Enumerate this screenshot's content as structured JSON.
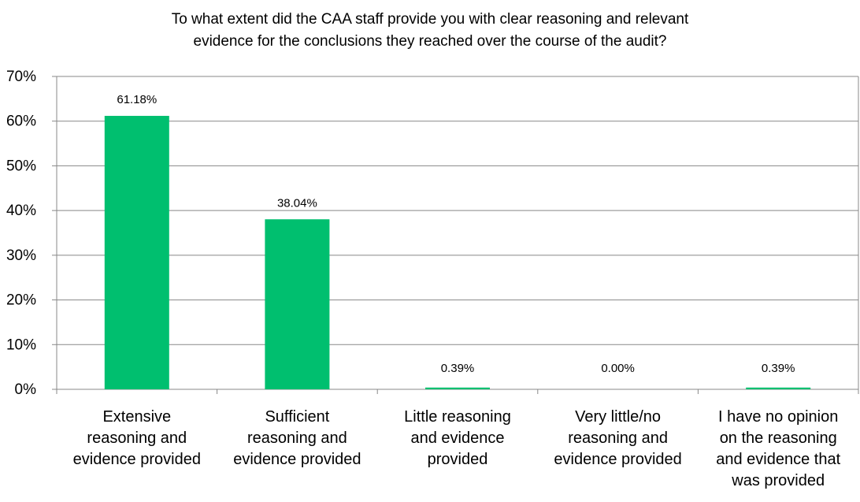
{
  "chart_data": {
    "type": "bar",
    "title_lines": [
      "To what extent did the CAA staff provide you with clear reasoning and relevant",
      "evidence for the conclusions they reached over the course of the audit?"
    ],
    "categories": [
      [
        "Extensive",
        "reasoning and",
        "evidence provided"
      ],
      [
        "Sufficient",
        "reasoning and",
        "evidence provided"
      ],
      [
        "Little reasoning",
        "and evidence",
        "provided"
      ],
      [
        "Very little/no",
        "reasoning and",
        "evidence provided"
      ],
      [
        "I have no opinion",
        "on the reasoning",
        "and evidence that",
        "was provided"
      ]
    ],
    "values": [
      61.18,
      38.04,
      0.39,
      0.0,
      0.39
    ],
    "data_labels": [
      "61.18%",
      "38.04%",
      "0.39%",
      "0.00%",
      "0.39%"
    ],
    "y_ticks": [
      "0%",
      "10%",
      "20%",
      "30%",
      "40%",
      "50%",
      "60%",
      "70%"
    ],
    "ylim": [
      0,
      70
    ],
    "xlabel": "",
    "ylabel": "",
    "grid": true,
    "legend": "none",
    "bar_color": "#00bf6f",
    "grid_color": "#888888"
  }
}
